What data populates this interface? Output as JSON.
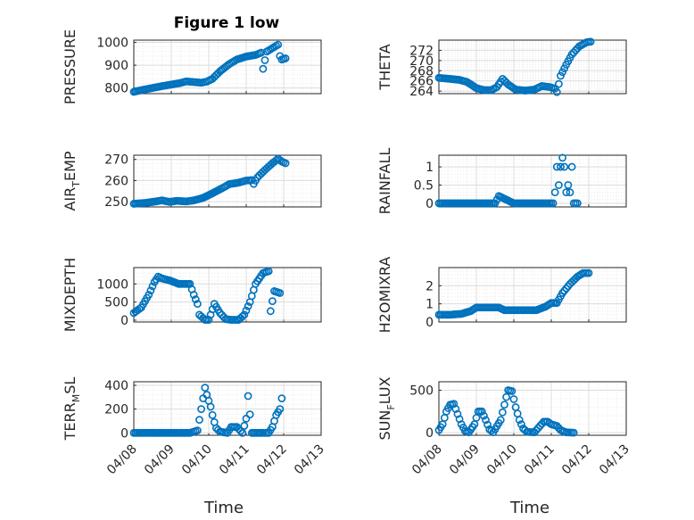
{
  "title": "Figure 1 low",
  "xlabel": "Time",
  "colors": {
    "marker": "#0072BD",
    "grid_major": "#dcdcdc",
    "grid_minor": "#ececec",
    "axis": "#262626"
  },
  "x_ticks": [
    "04/08",
    "04/09",
    "04/10",
    "04/11",
    "04/12",
    "04/13"
  ],
  "x_domain": [
    "04/08",
    "04/13"
  ],
  "chart_data": [
    {
      "type": "scatter",
      "ylabel": "PRESSURE",
      "ylabel_sub": "",
      "ylabel_post": "",
      "ylim": [
        775,
        1010
      ],
      "yticks": [
        800,
        900,
        1000
      ],
      "ytick_labels": [
        "800",
        "900",
        "1000"
      ],
      "points": [
        [
          0.0,
          783
        ],
        [
          0.25,
          792
        ],
        [
          0.5,
          800
        ],
        [
          0.75,
          808
        ],
        [
          1.0,
          815
        ],
        [
          1.25,
          822
        ],
        [
          1.4,
          829
        ],
        [
          1.6,
          826
        ],
        [
          1.8,
          823
        ],
        [
          1.95,
          828
        ],
        [
          2.1,
          840
        ],
        [
          2.3,
          873
        ],
        [
          2.55,
          905
        ],
        [
          2.75,
          925
        ],
        [
          3.0,
          938
        ],
        [
          3.25,
          945
        ],
        [
          3.4,
          955
        ],
        [
          3.45,
          884
        ],
        [
          3.55,
          960
        ],
        [
          3.7,
          975
        ],
        [
          3.85,
          990
        ],
        [
          3.9,
          940
        ],
        [
          3.95,
          925
        ],
        [
          4.05,
          930
        ]
      ]
    },
    {
      "type": "scatter",
      "ylabel": "THETA",
      "ylabel_sub": "",
      "ylabel_post": "",
      "ylim": [
        263.5,
        274
      ],
      "yticks": [
        264,
        266,
        268,
        270,
        272
      ],
      "ytick_labels": [
        "264",
        "266",
        "268",
        "270",
        "272"
      ],
      "points": [
        [
          0.0,
          266.6
        ],
        [
          0.3,
          266.4
        ],
        [
          0.55,
          266.2
        ],
        [
          0.75,
          265.8
        ],
        [
          1.0,
          264.6
        ],
        [
          1.2,
          264.2
        ],
        [
          1.4,
          264.2
        ],
        [
          1.55,
          264.8
        ],
        [
          1.7,
          266.4
        ],
        [
          1.85,
          265.3
        ],
        [
          2.05,
          264.3
        ],
        [
          2.3,
          264.1
        ],
        [
          2.55,
          264.3
        ],
        [
          2.75,
          265.0
        ],
        [
          2.95,
          264.8
        ],
        [
          3.1,
          264.5
        ],
        [
          3.15,
          263.8
        ],
        [
          3.25,
          267.0
        ],
        [
          3.4,
          269.2
        ],
        [
          3.55,
          271.2
        ],
        [
          3.75,
          272.8
        ],
        [
          3.95,
          273.6
        ],
        [
          4.05,
          273.7
        ]
      ]
    },
    {
      "type": "scatter",
      "ylabel": "AIR",
      "ylabel_sub": "T",
      "ylabel_post": "EMP",
      "ylim": [
        247.5,
        272
      ],
      "yticks": [
        250,
        260,
        270
      ],
      "ytick_labels": [
        "250",
        "260",
        "270"
      ],
      "points": [
        [
          0.0,
          249.0
        ],
        [
          0.3,
          249.4
        ],
        [
          0.55,
          250.0
        ],
        [
          0.75,
          250.6
        ],
        [
          0.95,
          249.9
        ],
        [
          1.15,
          250.4
        ],
        [
          1.4,
          250.1
        ],
        [
          1.6,
          250.6
        ],
        [
          1.85,
          251.8
        ],
        [
          2.1,
          254.0
        ],
        [
          2.35,
          256.3
        ],
        [
          2.55,
          258.3
        ],
        [
          2.8,
          259.0
        ],
        [
          3.0,
          260.0
        ],
        [
          3.15,
          260.2
        ],
        [
          3.2,
          258.4
        ],
        [
          3.3,
          261.5
        ],
        [
          3.5,
          265.0
        ],
        [
          3.7,
          268.2
        ],
        [
          3.85,
          270.3
        ],
        [
          3.95,
          269.0
        ],
        [
          4.05,
          268.2
        ]
      ]
    },
    {
      "type": "scatter",
      "ylabel": "RAINFALL",
      "ylabel_sub": "",
      "ylabel_post": "",
      "ylim": [
        -0.1,
        1.32
      ],
      "yticks": [
        0,
        0.5,
        1
      ],
      "ytick_labels": [
        "0",
        "0.5",
        "1"
      ],
      "points": [
        [
          0.0,
          0
        ],
        [
          0.5,
          0
        ],
        [
          1.0,
          0
        ],
        [
          1.5,
          0
        ],
        [
          1.6,
          0.2
        ],
        [
          2.0,
          0
        ],
        [
          2.5,
          0
        ],
        [
          3.0,
          0
        ],
        [
          3.05,
          0
        ],
        [
          3.1,
          0.3
        ],
        [
          3.15,
          1.0
        ],
        [
          3.2,
          0.5
        ],
        [
          3.25,
          1.0
        ],
        [
          3.3,
          1.25
        ],
        [
          3.35,
          1.0
        ],
        [
          3.4,
          0.3
        ],
        [
          3.45,
          0.5
        ],
        [
          3.5,
          0.3
        ],
        [
          3.55,
          1.0
        ],
        [
          3.6,
          0
        ],
        [
          3.7,
          0
        ]
      ]
    },
    {
      "type": "scatter",
      "ylabel": "MIXDEPTH",
      "ylabel_sub": "",
      "ylabel_post": "",
      "ylim": [
        -50,
        1450
      ],
      "yticks": [
        0,
        500,
        1000
      ],
      "ytick_labels": [
        "0",
        "500",
        "1000"
      ],
      "points": [
        [
          0.0,
          200
        ],
        [
          0.2,
          350
        ],
        [
          0.4,
          700
        ],
        [
          0.55,
          1050
        ],
        [
          0.65,
          1200
        ],
        [
          0.75,
          1150
        ],
        [
          0.95,
          1100
        ],
        [
          1.2,
          1000
        ],
        [
          1.5,
          1000
        ],
        [
          1.6,
          700
        ],
        [
          1.7,
          450
        ],
        [
          1.75,
          150
        ],
        [
          1.9,
          10
        ],
        [
          2.0,
          10
        ],
        [
          2.05,
          150
        ],
        [
          2.15,
          450
        ],
        [
          2.3,
          200
        ],
        [
          2.45,
          30
        ],
        [
          2.6,
          10
        ],
        [
          2.8,
          10
        ],
        [
          2.95,
          150
        ],
        [
          3.1,
          500
        ],
        [
          3.25,
          1000
        ],
        [
          3.45,
          1300
        ],
        [
          3.6,
          1350
        ],
        [
          3.65,
          250
        ],
        [
          3.75,
          800
        ],
        [
          3.9,
          750
        ]
      ]
    },
    {
      "type": "scatter",
      "ylabel": "H2OMIXRA",
      "ylabel_sub": "",
      "ylabel_post": "",
      "ylim": [
        0,
        3.0
      ],
      "yticks": [
        0,
        1,
        2
      ],
      "ytick_labels": [
        "0",
        "1",
        "2"
      ],
      "points": [
        [
          0.0,
          0.4
        ],
        [
          0.3,
          0.4
        ],
        [
          0.6,
          0.45
        ],
        [
          0.85,
          0.6
        ],
        [
          1.0,
          0.8
        ],
        [
          1.3,
          0.8
        ],
        [
          1.6,
          0.8
        ],
        [
          1.75,
          0.65
        ],
        [
          2.0,
          0.65
        ],
        [
          2.3,
          0.65
        ],
        [
          2.6,
          0.65
        ],
        [
          2.85,
          0.85
        ],
        [
          3.0,
          1.05
        ],
        [
          3.15,
          1.05
        ],
        [
          3.3,
          1.6
        ],
        [
          3.5,
          2.1
        ],
        [
          3.7,
          2.5
        ],
        [
          3.85,
          2.7
        ],
        [
          4.0,
          2.7
        ]
      ]
    },
    {
      "type": "scatter",
      "ylabel": "TERR",
      "ylabel_sub": "M",
      "ylabel_post": "SL",
      "ylim": [
        -20,
        430
      ],
      "yticks": [
        0,
        200,
        400
      ],
      "ytick_labels": [
        "0",
        "200",
        "400"
      ],
      "points": [
        [
          0.0,
          0
        ],
        [
          0.5,
          0
        ],
        [
          1.0,
          0
        ],
        [
          1.5,
          0
        ],
        [
          1.7,
          20
        ],
        [
          1.8,
          200
        ],
        [
          1.9,
          380
        ],
        [
          1.95,
          320
        ],
        [
          2.05,
          220
        ],
        [
          2.1,
          150
        ],
        [
          2.15,
          90
        ],
        [
          2.2,
          40
        ],
        [
          2.3,
          10
        ],
        [
          2.5,
          0
        ],
        [
          2.6,
          50
        ],
        [
          2.75,
          50
        ],
        [
          2.9,
          0
        ],
        [
          3.0,
          120
        ],
        [
          3.05,
          310
        ],
        [
          3.15,
          0
        ],
        [
          3.4,
          0
        ],
        [
          3.6,
          0
        ],
        [
          3.7,
          50
        ],
        [
          3.8,
          150
        ],
        [
          3.9,
          200
        ],
        [
          3.95,
          290
        ]
      ]
    },
    {
      "type": "scatter",
      "ylabel": "SUN",
      "ylabel_sub": "F",
      "ylabel_post": "LUX",
      "ylim": [
        -30,
        600
      ],
      "yticks": [
        0,
        500
      ],
      "ytick_labels": [
        "0",
        "500"
      ],
      "points": [
        [
          0.0,
          30
        ],
        [
          0.1,
          100
        ],
        [
          0.2,
          250
        ],
        [
          0.3,
          330
        ],
        [
          0.4,
          340
        ],
        [
          0.5,
          220
        ],
        [
          0.6,
          100
        ],
        [
          0.7,
          20
        ],
        [
          0.8,
          5
        ],
        [
          0.95,
          100
        ],
        [
          1.05,
          250
        ],
        [
          1.15,
          250
        ],
        [
          1.25,
          150
        ],
        [
          1.35,
          40
        ],
        [
          1.45,
          5
        ],
        [
          1.65,
          150
        ],
        [
          1.8,
          420
        ],
        [
          1.85,
          500
        ],
        [
          1.95,
          490
        ],
        [
          2.05,
          300
        ],
        [
          2.15,
          150
        ],
        [
          2.25,
          50
        ],
        [
          2.35,
          10
        ],
        [
          2.55,
          5
        ],
        [
          2.7,
          80
        ],
        [
          2.8,
          130
        ],
        [
          2.9,
          130
        ],
        [
          3.0,
          100
        ],
        [
          3.15,
          80
        ],
        [
          3.25,
          30
        ],
        [
          3.4,
          5
        ],
        [
          3.6,
          0
        ]
      ]
    }
  ]
}
